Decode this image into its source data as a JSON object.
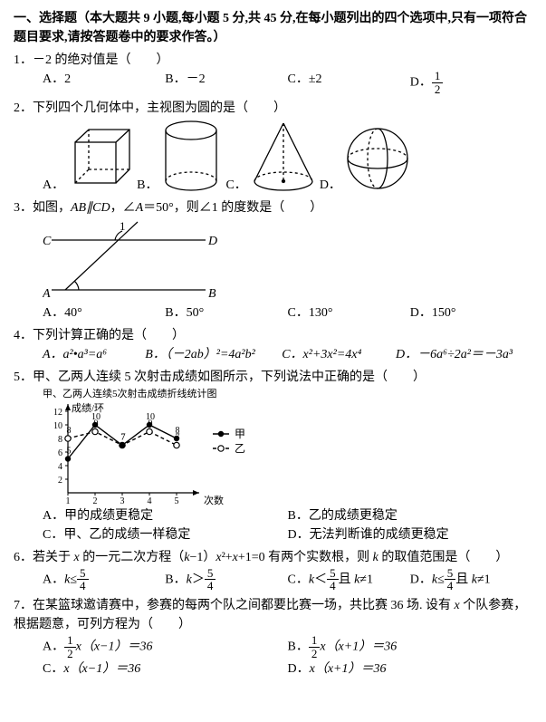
{
  "section": {
    "title": "一、选择题（本大题共 9 小题,每小题 5 分,共 45 分,在每小题列出的四个选项中,只有一项符合题目要求,请按答题卷中的要求作答。）"
  },
  "q1": {
    "stem": "1．－2 的绝对值是（　　）",
    "A": "A．2",
    "B": "B．－2",
    "C": "C．±2",
    "D_pre": "D．",
    "D_num": "1",
    "D_den": "2"
  },
  "q2": {
    "stem": "2．下列四个几何体中，主视图为圆的是（　　）",
    "A": "A．",
    "B": "B．",
    "C": "C．",
    "D": "D．"
  },
  "q3": {
    "stem_pre": "3．如图，",
    "stem_mid": "AB∥CD",
    "stem_post1": "，∠",
    "stem_a": "A",
    "stem_post2": "＝50°，则∠1 的度数是（　　）",
    "lblC": "C",
    "lblD": "D",
    "lblA": "A",
    "lblB": "B",
    "lbl1": "1",
    "A": "A．40°",
    "B": "B．50°",
    "C": "C．130°",
    "D": "D．150°"
  },
  "q4": {
    "stem": "4．下列计算正确的是（　　）",
    "A_html": "A．a²•a³=a⁶",
    "B_html": "B．（－2ab）²=4a²b²",
    "C_html": "C．x²+3x²=4x⁴",
    "D_html": "D．－6a⁶÷2a²＝－3a³"
  },
  "q5": {
    "stem": "5．甲、乙两人连续 5 次射击成绩如图所示，下列说法中正确的是（　　）",
    "chart_title": "甲、乙两人连续5次射击成绩折线统计图",
    "yaxis": "成绩/环",
    "xaxis": "次数",
    "legend_jia": "甲",
    "legend_yi": "乙",
    "xticks": [
      "1",
      "2",
      "3",
      "4",
      "5"
    ],
    "yticks": [
      "2",
      "4",
      "6",
      "8",
      "10",
      "12"
    ],
    "jia_values": [
      5,
      10,
      7,
      10,
      8
    ],
    "jia_labels": [
      "5",
      "10",
      "7",
      "10",
      "8"
    ],
    "yi_values": [
      8,
      9,
      7,
      9,
      7
    ],
    "yi_labels": [
      "8",
      "9",
      "7",
      "9",
      "7"
    ],
    "A": "A．甲的成绩更稳定",
    "B": "B．乙的成绩更稳定",
    "C": "C．甲、乙的成绩一样稳定",
    "D": "D．无法判断谁的成绩更稳定"
  },
  "q6": {
    "stem_pre": "6．若关于 ",
    "x1": "x",
    "stem_mid1": " 的一元二次方程（",
    "k1": "k",
    "stem_mid2": "−1）",
    "x2": "x",
    "stem_mid3": "²+",
    "x3": "x",
    "stem_mid4": "+1=0 有两个实数根，则 ",
    "k2": "k",
    "stem_post": " 的取值范围是（　　）",
    "A_pre": "A．",
    "A_k": "k",
    "A_le": "≤",
    "A_num": "5",
    "A_den": "4",
    "B_pre": "B．",
    "B_k": "k",
    "B_gt": "＞",
    "B_num": "5",
    "B_den": "4",
    "C_pre": "C．",
    "C_k": "k",
    "C_lt": "＜",
    "C_num": "5",
    "C_den": "4",
    "C_and": "且 ",
    "C_k2": "k",
    "C_ne": "≠1",
    "D_pre": "D．",
    "D_k": "k",
    "D_le": "≤",
    "D_num": "5",
    "D_den": "4",
    "D_and": "且 ",
    "D_k2": "k",
    "D_ne": "≠1"
  },
  "q7": {
    "stem_pre": "7．在某篮球邀请赛中，参赛的每两个队之间都要比赛一场，共比赛 36 场. 设有 ",
    "x": "x",
    "stem_post": " 个队参赛，根据题意，可列方程为（　　）",
    "A_pre": "A．",
    "A_num": "1",
    "A_den": "2",
    "A_x": "x",
    "A_paren": "（x−1）＝36",
    "B_pre": "B．",
    "B_num": "1",
    "B_den": "2",
    "B_x": "x",
    "B_paren": "（x+1）＝36",
    "C_pre": "C．",
    "C_x": "x",
    "C_paren": "（x−1）＝36",
    "D_pre": "D．",
    "D_x": "x",
    "D_paren": "（x+1）＝36"
  }
}
